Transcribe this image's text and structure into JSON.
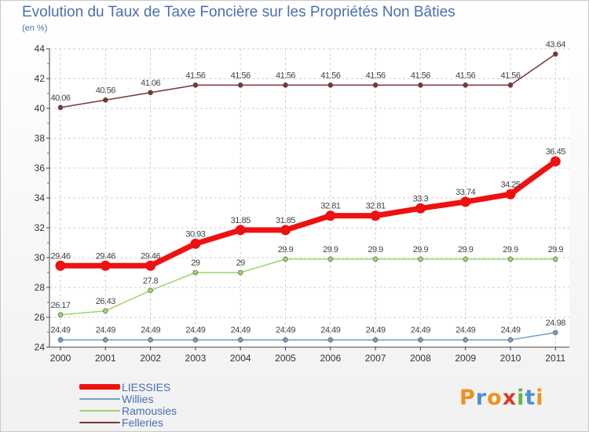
{
  "header": {
    "title": "Evolution du Taux de Taxe Foncière sur les Propriétés Non Bâties",
    "subtitle": "(en %)"
  },
  "logo": {
    "text": "Proxiti",
    "colors": [
      "#f0901e",
      "#4f8fd6",
      "#f0901e",
      "#d93b2b",
      "#6cb33f",
      "#4f8fd6",
      "#f0901e"
    ]
  },
  "chart_data": {
    "type": "line",
    "title": "Evolution du Taux de Taxe Foncière sur les Propriétés Non Bâties",
    "ylabel": "(en %)",
    "x": [
      "2000",
      "2001",
      "2002",
      "2003",
      "2004",
      "2005",
      "2006",
      "2007",
      "2008",
      "2009",
      "2010",
      "2011"
    ],
    "ylim": [
      24,
      44
    ],
    "yticks": [
      24,
      26,
      28,
      30,
      32,
      34,
      36,
      38,
      40,
      42,
      44
    ],
    "grid": true,
    "legend": "bottom-left",
    "series": [
      {
        "name": "LIESSIES",
        "color": "#ee1111",
        "emphasis": true,
        "values": [
          29.46,
          29.46,
          29.46,
          30.93,
          31.85,
          31.85,
          32.81,
          32.81,
          33.3,
          33.74,
          34.25,
          36.45
        ],
        "labels": [
          "29.46",
          "29.46",
          "29.46",
          "30.93",
          "31.85",
          "31.85",
          "32.81",
          "32.81",
          "33.3",
          "33.74",
          "34.25",
          "36.45"
        ]
      },
      {
        "name": "Willies",
        "color": "#6f9fc8",
        "values": [
          24.49,
          24.49,
          24.49,
          24.49,
          24.49,
          24.49,
          24.49,
          24.49,
          24.49,
          24.49,
          24.49,
          24.98
        ],
        "labels": [
          "24.49",
          "24.49",
          "24.49",
          "24.49",
          "24.49",
          "24.49",
          "24.49",
          "24.49",
          "24.49",
          "24.49",
          "24.49",
          "24.98"
        ]
      },
      {
        "name": "Ramousies",
        "color": "#9dd46a",
        "values": [
          26.17,
          26.43,
          27.8,
          29,
          29,
          29.9,
          29.9,
          29.9,
          29.9,
          29.9,
          29.9,
          29.9
        ],
        "labels": [
          "26.17",
          "26.43",
          "27.8",
          "29",
          "29",
          "29.9",
          "29.9",
          "29.9",
          "29.9",
          "29.9",
          "29.9",
          "29.9"
        ]
      },
      {
        "name": "Felleries",
        "color": "#7a3535",
        "values": [
          40.06,
          40.56,
          41.06,
          41.56,
          41.56,
          41.56,
          41.56,
          41.56,
          41.56,
          41.56,
          41.56,
          43.64
        ],
        "labels": [
          "40.06",
          "40.56",
          "41.06",
          "41.56",
          "41.56",
          "41.56",
          "41.56",
          "41.56",
          "41.56",
          "41.56",
          "41.56",
          "43.64"
        ]
      }
    ]
  }
}
